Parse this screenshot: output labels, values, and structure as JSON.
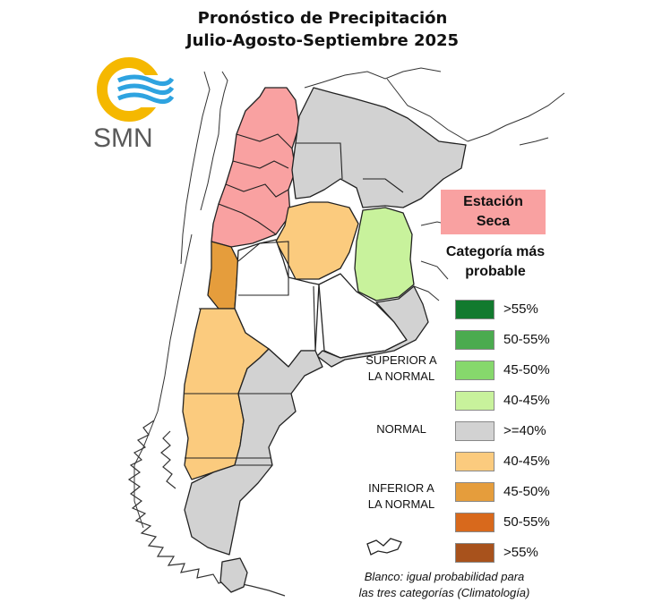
{
  "title": {
    "line1": "Pronóstico de Precipitación",
    "line2": "Julio-Agosto-Septiembre 2025"
  },
  "logo": {
    "text": "SMN",
    "icon": "smn-sun-waves-logo",
    "colors": {
      "ring": "#f5b800",
      "waves": "#2ea3e0",
      "text": "#5a5a5a"
    }
  },
  "dry_season_label": {
    "line1": "Estación",
    "line2": "Seca",
    "color": "#f9a1a1"
  },
  "legend": {
    "title_line1": "Categoría más",
    "title_line2": "probable",
    "groups": [
      {
        "line1": "SUPERIOR A",
        "line2": "LA NORMAL"
      },
      {
        "line1": "NORMAL",
        "line2": ""
      },
      {
        "line1": "INFERIOR A",
        "line2": "LA NORMAL"
      }
    ],
    "items": [
      {
        "label": ">55%",
        "color": "#127a2e",
        "category": "superior"
      },
      {
        "label": "50-55%",
        "color": "#4bab4f",
        "category": "superior"
      },
      {
        "label": "45-50%",
        "color": "#86d86c",
        "category": "superior"
      },
      {
        "label": "40-45%",
        "color": "#c8f29c",
        "category": "superior"
      },
      {
        "label": ">=40%",
        "color": "#d2d2d2",
        "category": "normal"
      },
      {
        "label": "40-45%",
        "color": "#fbcb7e",
        "category": "inferior"
      },
      {
        "label": "45-50%",
        "color": "#e59d3c",
        "category": "inferior"
      },
      {
        "label": "50-55%",
        "color": "#d8691c",
        "category": "inferior"
      },
      {
        "label": ">55%",
        "color": "#a8521c",
        "category": "inferior"
      }
    ]
  },
  "footnote": {
    "line1": "Blanco: igual probabilidad para",
    "line2": "las tres categorías (Climatología)"
  },
  "map_colors": {
    "dry": "#f9a1a1",
    "normal": "#d2d2d2",
    "above_40_45": "#c8f29c",
    "below_40_45": "#fbcb7e",
    "below_45_50": "#e59d3c",
    "climatology": "#ffffff",
    "border": "#222222"
  }
}
